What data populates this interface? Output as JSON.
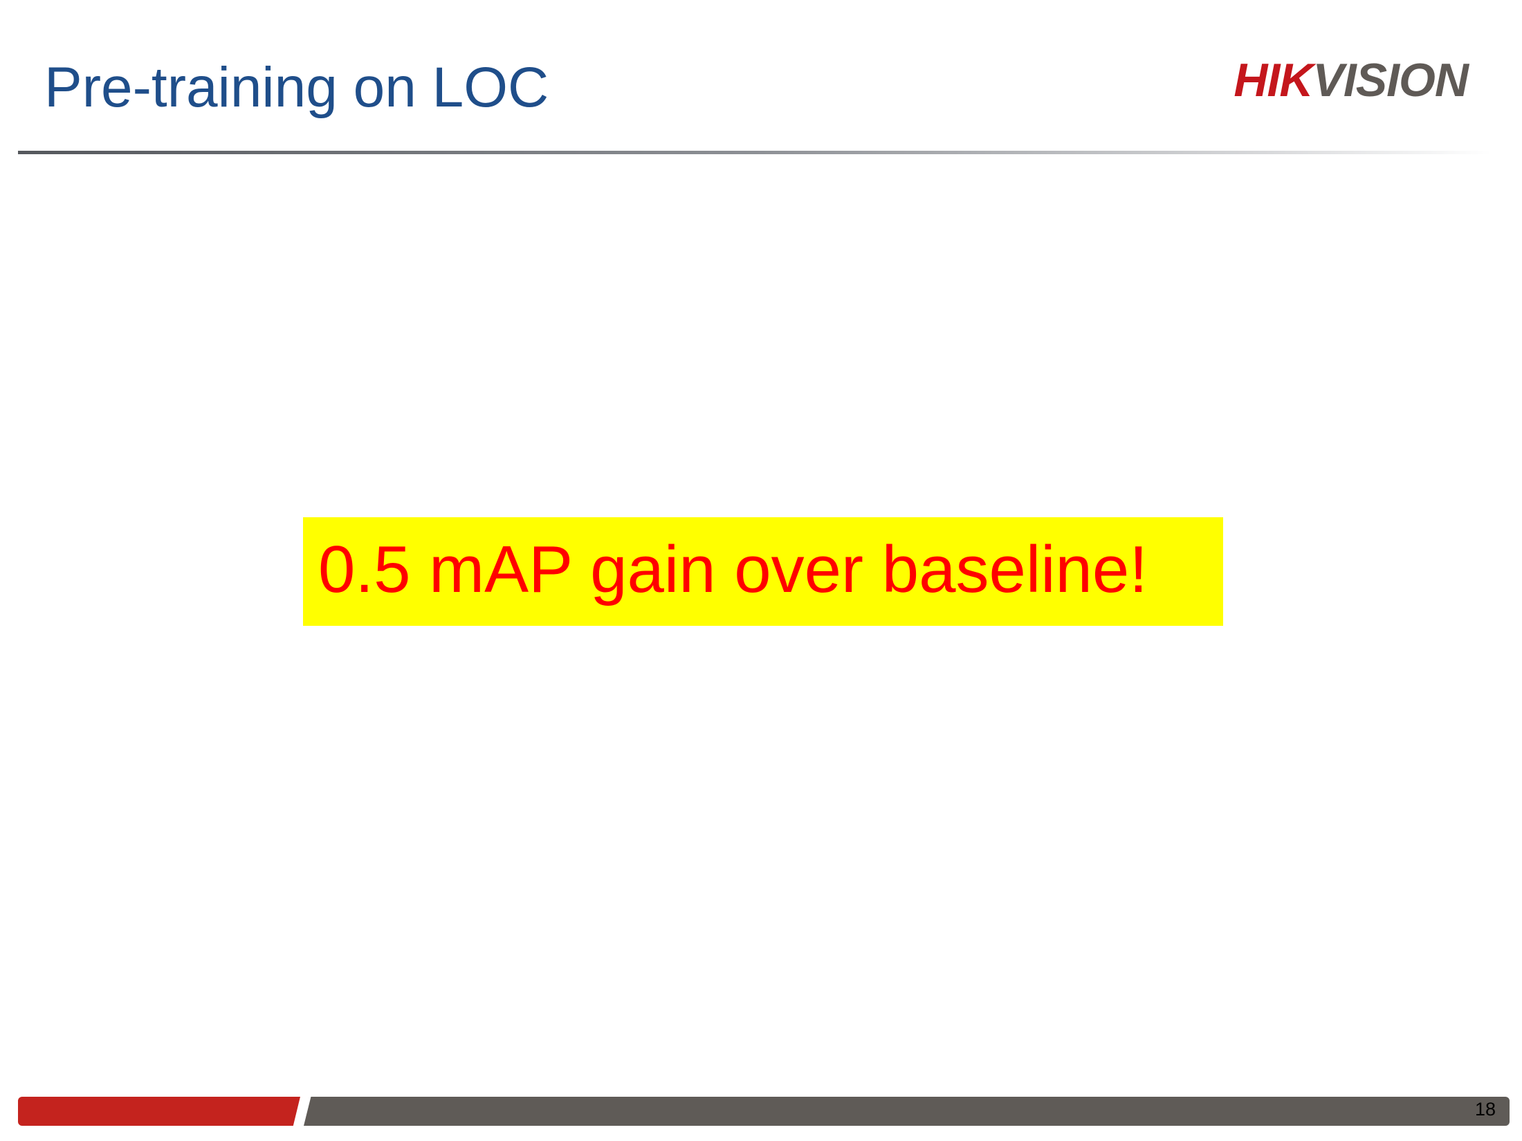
{
  "slide": {
    "title": "Pre-training on LOC",
    "logo": {
      "text_red": "HIK",
      "text_gray": "VISION"
    },
    "highlight": {
      "text": "0.5 mAP gain over baseline!"
    },
    "page_number": "18"
  },
  "colors": {
    "title": "#1f4e8a",
    "logo_red": "#c4161c",
    "logo_gray": "#5f5a56",
    "highlight_background": "#ffff00",
    "highlight_text": "#ff0000",
    "footer_red": "#c4231e",
    "footer_gray": "#5f5b57"
  }
}
